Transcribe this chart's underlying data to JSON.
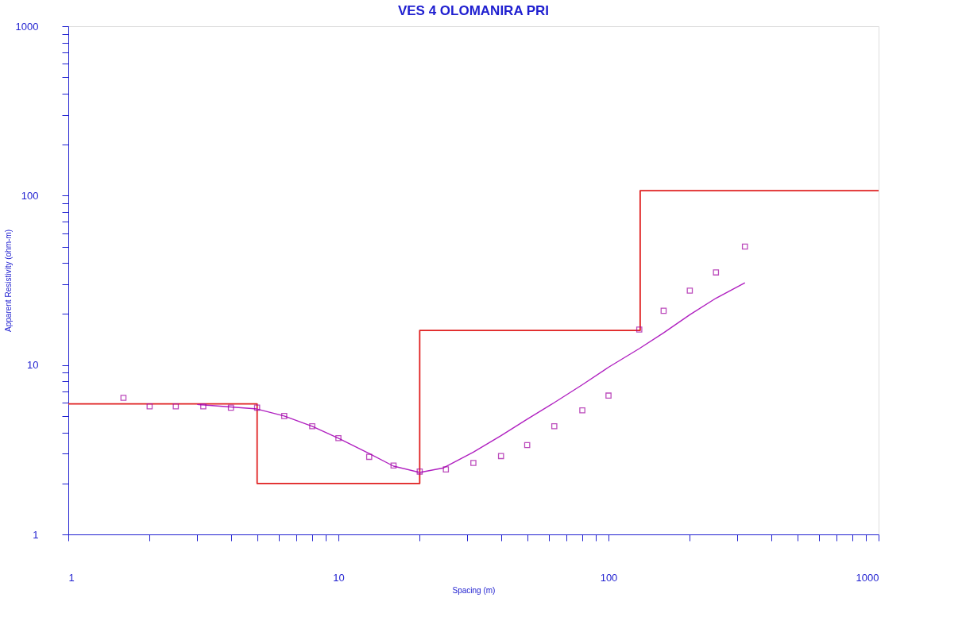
{
  "chart_data": {
    "type": "scatter",
    "title": "VES 4 OLOMANIRA PRI",
    "xlabel": "Spacing (m)",
    "ylabel": "Apparent Resistivity (ohm-m)",
    "log": "xy",
    "grid": false,
    "xlim": [
      1,
      1000
    ],
    "ylim": [
      1,
      1000
    ],
    "xticks": [
      1,
      {
        "value": 2,
        "label": null
      },
      {
        "value": 3,
        "label": null
      },
      {
        "value": 4,
        "label": null
      },
      {
        "value": 5,
        "label": null
      },
      {
        "value": 6,
        "label": null
      },
      {
        "value": 7,
        "label": null
      },
      {
        "value": 8,
        "label": null
      },
      {
        "value": 9,
        "label": null
      },
      10,
      {
        "value": 20,
        "label": null
      },
      {
        "value": 30,
        "label": null
      },
      {
        "value": 40,
        "label": null
      },
      {
        "value": 50,
        "label": null
      },
      {
        "value": 60,
        "label": null
      },
      {
        "value": 70,
        "label": null
      },
      {
        "value": 80,
        "label": null
      },
      {
        "value": 90,
        "label": null
      },
      100,
      {
        "value": 200,
        "label": null
      },
      {
        "value": 300,
        "label": null
      },
      {
        "value": 400,
        "label": null
      },
      {
        "value": 500,
        "label": null
      },
      {
        "value": 600,
        "label": null
      },
      {
        "value": 700,
        "label": null
      },
      {
        "value": 800,
        "label": null
      },
      {
        "value": 900,
        "label": null
      },
      1000
    ],
    "yticks": [
      1,
      {
        "value": 2,
        "label": null
      },
      {
        "value": 3,
        "label": null
      },
      {
        "value": 4,
        "label": null
      },
      {
        "value": 5,
        "label": null
      },
      {
        "value": 6,
        "label": null
      },
      {
        "value": 7,
        "label": null
      },
      {
        "value": 8,
        "label": null
      },
      {
        "value": 9,
        "label": null
      },
      10,
      {
        "value": 20,
        "label": null
      },
      {
        "value": 30,
        "label": null
      },
      {
        "value": 40,
        "label": null
      },
      {
        "value": 50,
        "label": null
      },
      {
        "value": 60,
        "label": null
      },
      {
        "value": 70,
        "label": null
      },
      {
        "value": 80,
        "label": null
      },
      {
        "value": 90,
        "label": null
      },
      100,
      {
        "value": 200,
        "label": null
      },
      {
        "value": 300,
        "label": null
      },
      {
        "value": 400,
        "label": null
      },
      {
        "value": 500,
        "label": null
      },
      {
        "value": 600,
        "label": null
      },
      {
        "value": 700,
        "label": null
      },
      {
        "value": 800,
        "label": null
      },
      {
        "value": 900,
        "label": null
      },
      1000
    ],
    "series": [
      {
        "type": "step",
        "color": "#e02020",
        "x": [
          1,
          5,
          20,
          131,
          1000
        ],
        "values": [
          5.9,
          2.0,
          16,
          107,
          107
        ]
      },
      {
        "type": "line",
        "color": "#b020c0",
        "line_style": "solid",
        "x": [
          3,
          5,
          6.3,
          8,
          10,
          13,
          16,
          20,
          24.5,
          31.6,
          40,
          50,
          63,
          80,
          100,
          130,
          160,
          200,
          250,
          320
        ],
        "values": [
          5.85,
          5.5,
          5.0,
          4.35,
          3.7,
          3.0,
          2.53,
          2.32,
          2.47,
          3.06,
          3.83,
          4.79,
          6.0,
          7.65,
          9.7,
          12.5,
          15.5,
          19.8,
          24.8,
          30.6
        ]
      },
      {
        "marker": "square",
        "color": "#a000a0",
        "x": [
          1.6,
          2,
          2.5,
          3.16,
          4,
          5,
          6.3,
          8,
          10,
          13,
          16,
          20,
          25,
          31.6,
          40,
          50,
          63,
          80,
          100,
          130,
          160,
          200,
          250,
          320
        ],
        "values": [
          6.4,
          5.7,
          5.7,
          5.7,
          5.6,
          5.6,
          5.0,
          4.35,
          3.7,
          2.87,
          2.55,
          2.35,
          2.42,
          2.64,
          2.9,
          3.37,
          4.35,
          5.4,
          6.6,
          16.2,
          20.9,
          27.5,
          35.2,
          50
        ]
      }
    ]
  }
}
